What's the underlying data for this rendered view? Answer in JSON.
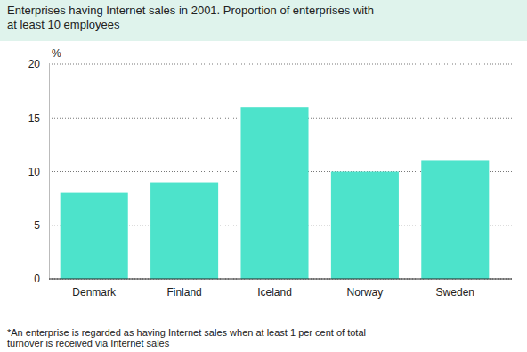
{
  "chart_data": {
    "type": "bar",
    "title": "Enterprises having Internet sales in 2001. Proportion of enterprises with at least 10 employees",
    "y_label": "%",
    "categories": [
      "Denmark",
      "Finland",
      "Iceland",
      "Norway",
      "Sweden"
    ],
    "values": [
      8,
      9,
      16,
      10,
      11
    ],
    "color": "#4de3cb",
    "ylim": [
      0,
      20
    ],
    "yticks": [
      0,
      5,
      10,
      15,
      20
    ],
    "grid": true,
    "annotations": [
      "*An enterprise is regarded as having Internet sales when at least 1 per cent of total turnover is received via Internet sales"
    ]
  }
}
